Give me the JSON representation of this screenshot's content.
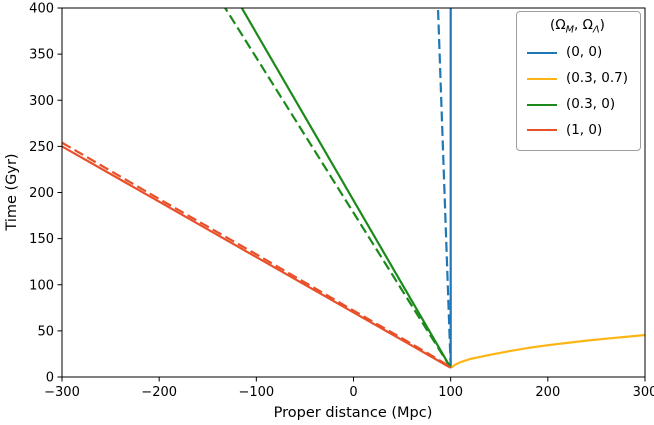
{
  "chart_data": {
    "type": "line",
    "title": "",
    "xlabel": "Proper distance (Mpc)",
    "ylabel": "Time (Gyr)",
    "xlim": [
      -300,
      300
    ],
    "ylim": [
      0,
      400
    ],
    "xticks": [
      -300,
      -200,
      -100,
      0,
      100,
      200,
      300
    ],
    "yticks": [
      0,
      50,
      100,
      150,
      200,
      250,
      300,
      350,
      400
    ],
    "grid": false,
    "legend": {
      "title": "(Ω_M, Ω_Λ)",
      "position": "upper right",
      "entries": [
        {
          "label": "(0, 0)",
          "color": "#1f77b4"
        },
        {
          "label": "(0.3, 0.7)",
          "color": "#fdb515"
        },
        {
          "label": "(0.3, 0)",
          "color": "#1b8a1b"
        },
        {
          "label": "(1, 0)",
          "color": "#e8502a"
        }
      ]
    },
    "series": [
      {
        "name": "(0, 0) solid",
        "color": "#1f77b4",
        "style": "solid",
        "points": [
          [
            100,
            10
          ],
          [
            100,
            400
          ]
        ]
      },
      {
        "name": "(0, 0) dashed",
        "color": "#1f77b4",
        "style": "dashed",
        "points": [
          [
            100,
            10
          ],
          [
            87,
            400
          ]
        ]
      },
      {
        "name": "(0.3, 0.7) solid",
        "color": "#fdb515",
        "style": "solid",
        "points": [
          [
            100,
            10
          ],
          [
            105,
            13.5
          ],
          [
            110,
            16
          ],
          [
            120,
            19.5
          ],
          [
            140,
            24
          ],
          [
            160,
            28
          ],
          [
            180,
            31.5
          ],
          [
            200,
            34.5
          ],
          [
            220,
            37
          ],
          [
            240,
            39.5
          ],
          [
            260,
            41.5
          ],
          [
            280,
            43.5
          ],
          [
            300,
            45.5
          ]
        ]
      },
      {
        "name": "(0.3, 0) solid",
        "color": "#1b8a1b",
        "style": "solid",
        "points": [
          [
            100,
            10
          ],
          [
            -115,
            400
          ]
        ]
      },
      {
        "name": "(0.3, 0) dashed",
        "color": "#1b8a1b",
        "style": "dashed",
        "points": [
          [
            100,
            10
          ],
          [
            -132,
            400
          ]
        ]
      },
      {
        "name": "(1, 0) solid",
        "color": "#e8502a",
        "style": "solid",
        "points": [
          [
            -300,
            250
          ],
          [
            -200,
            190
          ],
          [
            -100,
            130
          ],
          [
            0,
            70
          ],
          [
            50,
            40
          ],
          [
            80,
            22
          ],
          [
            95,
            13
          ],
          [
            100,
            10
          ]
        ]
      },
      {
        "name": "(1, 0) dashed",
        "color": "#e8502a",
        "style": "dashed",
        "points": [
          [
            -300,
            254
          ],
          [
            -200,
            193
          ],
          [
            -100,
            133
          ],
          [
            0,
            72
          ],
          [
            50,
            42
          ],
          [
            80,
            23.5
          ],
          [
            95,
            14
          ],
          [
            100,
            10.5
          ]
        ]
      }
    ]
  }
}
